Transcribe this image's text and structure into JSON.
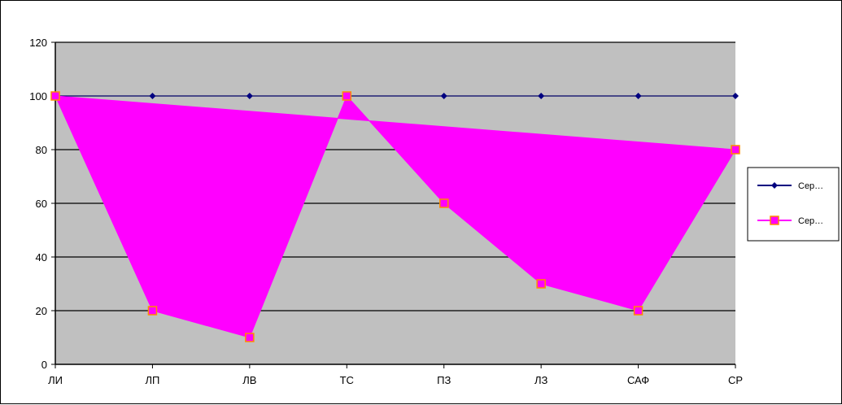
{
  "chart_data": {
    "type": "area",
    "categories": [
      "ЛИ",
      "ЛП",
      "ЛВ",
      "ТС",
      "ПЗ",
      "ЛЗ",
      "САФ",
      "СР"
    ],
    "y_ticks": [
      "0",
      "20",
      "40",
      "60",
      "80",
      "100",
      "120"
    ],
    "ylim": [
      0,
      120
    ],
    "grid": true,
    "legend_position": "right",
    "plot_background": "#c0c0c0",
    "series": [
      {
        "legend_label": "Сер…",
        "values": [
          100,
          100,
          100,
          100,
          100,
          100,
          100,
          100
        ],
        "color": "#000080",
        "marker": "diamond"
      },
      {
        "legend_label": "Сер…",
        "values": [
          100,
          20,
          10,
          100,
          60,
          30,
          20,
          80
        ],
        "color": "#ff00ff",
        "marker": "square",
        "marker_color": "#ff8c00"
      }
    ]
  }
}
